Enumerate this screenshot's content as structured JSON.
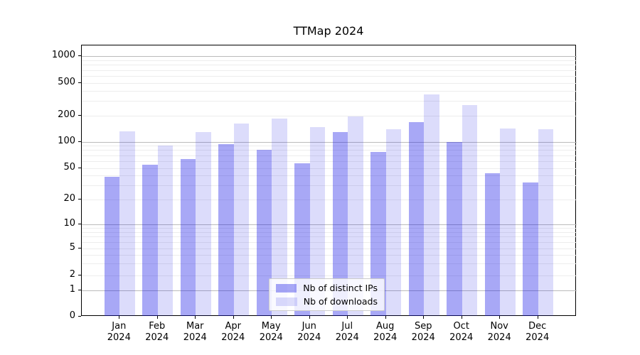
{
  "figure": {
    "background": "#ffffff"
  },
  "chart_data": {
    "type": "bar",
    "title": "TTMap 2024",
    "categories": [
      "Jan",
      "Feb",
      "Mar",
      "Apr",
      "May",
      "Jun",
      "Jul",
      "Aug",
      "Sep",
      "Oct",
      "Nov",
      "Dec"
    ],
    "x_year": "2024",
    "series": [
      {
        "name": "Nb of distinct IPs",
        "color": "rgba(20,20,230,0.37)",
        "values": [
          39,
          54,
          63,
          94,
          81,
          57,
          130,
          76,
          168,
          100,
          43,
          33
        ]
      },
      {
        "name": "Nb of downloads",
        "color": "rgba(20,20,230,0.15)",
        "values": [
          131,
          91,
          130,
          161,
          184,
          146,
          195,
          139,
          360,
          270,
          143,
          139
        ]
      }
    ],
    "yscale": "symlog",
    "y_ticks": [
      0,
      1,
      2,
      5,
      10,
      20,
      50,
      100,
      200,
      500,
      1000
    ],
    "ylim": [
      0,
      1300
    ],
    "grid": "horizontal major and log-minor gridlines",
    "legend_position": "lower center"
  },
  "colors": {
    "grid_major": "#bbbbbb",
    "grid_minor": "#ededed",
    "spine": "#000000",
    "text": "#000000"
  }
}
